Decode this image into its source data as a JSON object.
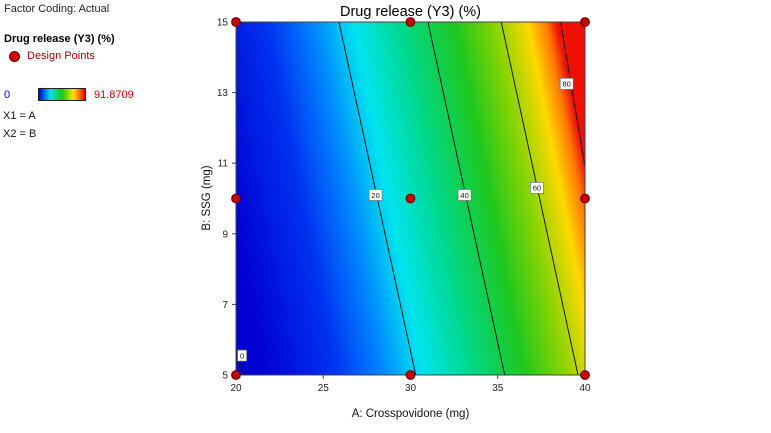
{
  "sidebar": {
    "factor_coding": "Factor Coding: Actual",
    "response_label": "Drug release (Y3) (%)",
    "design_points_label": "Design Points",
    "scale_min": "0",
    "scale_max": "91.8709",
    "x1": "X1 = A",
    "x2": "X2 = B"
  },
  "colors": {
    "design_point_fill": "#cc0000",
    "design_point_outline": "#6b0000",
    "design_points_text": "#b30000",
    "scale_min_text": "#0000ee",
    "scale_max_text": "#e80000",
    "contour_line": "#1a1a1a",
    "axis": "#444444"
  },
  "chart_data": {
    "type": "heatmap",
    "subtype": "filled-contour-surface",
    "title": "Drug release (Y3) (%)",
    "xlabel": "A: Crosspovidone (mg)",
    "ylabel": "B: SSG (mg)",
    "xlim": [
      20,
      40
    ],
    "ylim": [
      5,
      15
    ],
    "xticks": [
      20,
      25,
      30,
      35,
      40
    ],
    "yticks": [
      5,
      7,
      9,
      11,
      13,
      15
    ],
    "scale": {
      "min": 0,
      "max": 91.8709
    },
    "colormap": [
      "#0000d2",
      "#00e5ee",
      "#18c818",
      "#ffe100",
      "#f20000"
    ],
    "gradient": {
      "x1": 0,
      "y1": 0.6,
      "x2": 1,
      "y2": 0.4,
      "stops": [
        [
          0.0,
          "#0000d2"
        ],
        [
          0.2,
          "#0033f0"
        ],
        [
          0.32,
          "#0080ff"
        ],
        [
          0.44,
          "#00e5ee"
        ],
        [
          0.57,
          "#00d88c"
        ],
        [
          0.72,
          "#1ec81e"
        ],
        [
          0.83,
          "#8cd400"
        ],
        [
          0.92,
          "#ffd800"
        ],
        [
          0.97,
          "#ff7800"
        ],
        [
          1.0,
          "#ee1000"
        ]
      ]
    },
    "contours": [
      {
        "level": 0,
        "line": [
          [
            20,
            5.5
          ],
          [
            20.5,
            5
          ]
        ],
        "label_at": [
          20.35,
          5.55
        ]
      },
      {
        "level": 20,
        "line": [
          [
            25.9,
            15
          ],
          [
            30.3,
            5
          ]
        ],
        "label_at": [
          28.0,
          10.1
        ]
      },
      {
        "level": 40,
        "line": [
          [
            31.0,
            15
          ],
          [
            35.4,
            5
          ]
        ],
        "label_at": [
          33.1,
          10.1
        ]
      },
      {
        "level": 60,
        "line": [
          [
            35.2,
            15
          ],
          [
            39.6,
            5
          ]
        ],
        "label_at": [
          37.25,
          10.3
        ]
      },
      {
        "level": 80,
        "line": [
          [
            38.6,
            15
          ],
          [
            40,
            10.9
          ]
        ],
        "label_at": [
          38.95,
          13.25
        ]
      }
    ],
    "design_points": [
      [
        20,
        15
      ],
      [
        30,
        15
      ],
      [
        40,
        15
      ],
      [
        20,
        10
      ],
      [
        30,
        10
      ],
      [
        40,
        10
      ],
      [
        20,
        5
      ],
      [
        30,
        5
      ],
      [
        40,
        5
      ]
    ]
  }
}
